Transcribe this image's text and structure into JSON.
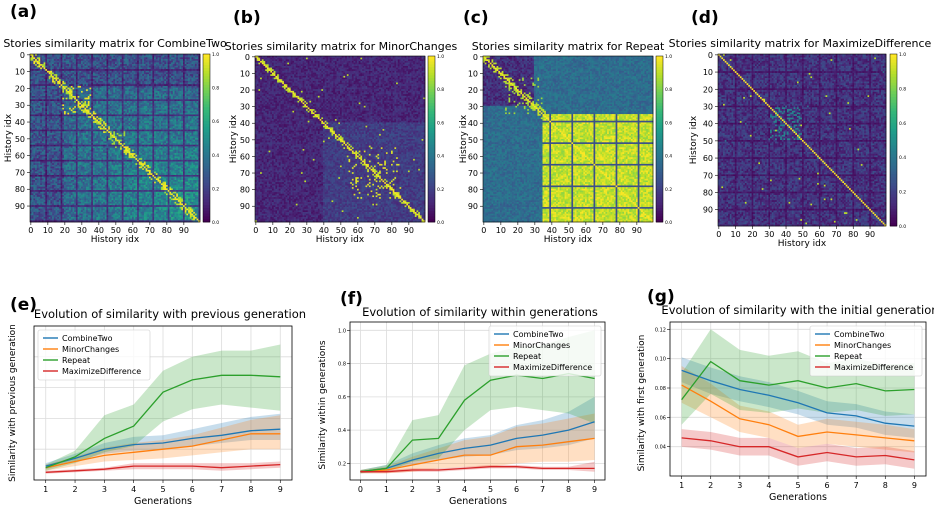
{
  "colors": {
    "CombineTwo": "#1f77b4",
    "MinorChanges": "#ff7f0e",
    "Repeat": "#2ca02c",
    "MaximizeDifference": "#d62728",
    "viridis": [
      "#440154",
      "#482878",
      "#3e4989",
      "#31688e",
      "#26828e",
      "#1f9e89",
      "#35b779",
      "#6ece58",
      "#b5de2b",
      "#fde725"
    ]
  },
  "chart_data": [
    {
      "type": "heatmap",
      "panel": "(a)",
      "title": "Stories similarity matrix for CombineTwo",
      "xlabel": "History idx",
      "ylabel": "History idx",
      "tick_labels": [
        "0",
        "10",
        "20",
        "30",
        "40",
        "50",
        "60",
        "70",
        "80",
        "90"
      ],
      "colorbar_ticks": [
        "1.0",
        "0.8",
        "0.6",
        "0.4",
        "0.2",
        "0.0"
      ],
      "size": 100,
      "pattern": "combine"
    },
    {
      "type": "heatmap",
      "panel": "(b)",
      "title": "Stories similarity matrix for MinorChanges",
      "xlabel": "History idx",
      "ylabel": "History idx",
      "tick_labels": [
        "0",
        "10",
        "20",
        "30",
        "40",
        "50",
        "60",
        "70",
        "80",
        "90"
      ],
      "colorbar_ticks": [
        "1.0",
        "0.8",
        "0.6",
        "0.4",
        "0.2",
        "0.0"
      ],
      "size": 100,
      "pattern": "minor"
    },
    {
      "type": "heatmap",
      "panel": "(c)",
      "title": "Stories similarity matrix for Repeat",
      "xlabel": "History idx",
      "ylabel": "History idx",
      "tick_labels": [
        "0",
        "10",
        "20",
        "30",
        "40",
        "50",
        "60",
        "70",
        "80",
        "90"
      ],
      "colorbar_ticks": [
        "1.0",
        "0.8",
        "0.6",
        "0.4",
        "0.2",
        "0.0"
      ],
      "size": 100,
      "pattern": "repeat"
    },
    {
      "type": "heatmap",
      "panel": "(d)",
      "title": "Stories similarity matrix for MaximizeDifference",
      "xlabel": "History idx",
      "ylabel": "History idx",
      "tick_labels": [
        "0",
        "10",
        "20",
        "30",
        "40",
        "50",
        "60",
        "70",
        "80",
        "90"
      ],
      "colorbar_ticks": [
        "1.0",
        "0.8",
        "0.6",
        "0.4",
        "0.2",
        "0.0"
      ],
      "size": 100,
      "pattern": "maxdiff"
    },
    {
      "type": "line",
      "panel": "(e)",
      "title": "Evolution of similarity with previous generation",
      "xlabel": "Generations",
      "ylabel": "Similarity with previous generation",
      "x": [
        1,
        2,
        3,
        4,
        5,
        6,
        7,
        8,
        9
      ],
      "xlim": [
        0.6,
        9.4
      ],
      "ylim": [
        0.0,
        1.0
      ],
      "yticks": [],
      "legend": "top-left",
      "series": [
        {
          "name": "CombineTwo",
          "values": [
            0.09,
            0.14,
            0.2,
            0.23,
            0.24,
            0.27,
            0.29,
            0.32,
            0.33
          ],
          "lower": [
            0.07,
            0.12,
            0.17,
            0.19,
            0.2,
            0.22,
            0.24,
            0.26,
            0.26
          ],
          "upper": [
            0.11,
            0.17,
            0.24,
            0.28,
            0.29,
            0.33,
            0.37,
            0.41,
            0.43
          ]
        },
        {
          "name": "MinorChanges",
          "values": [
            0.08,
            0.12,
            0.16,
            0.18,
            0.2,
            0.22,
            0.26,
            0.3,
            0.3
          ],
          "lower": [
            0.06,
            0.09,
            0.12,
            0.13,
            0.14,
            0.16,
            0.18,
            0.2,
            0.2
          ],
          "upper": [
            0.1,
            0.15,
            0.21,
            0.24,
            0.26,
            0.29,
            0.34,
            0.39,
            0.42
          ]
        },
        {
          "name": "Repeat",
          "values": [
            0.08,
            0.15,
            0.27,
            0.35,
            0.57,
            0.65,
            0.68,
            0.68,
            0.67
          ],
          "lower": [
            0.06,
            0.11,
            0.18,
            0.22,
            0.38,
            0.46,
            0.49,
            0.47,
            0.45
          ],
          "upper": [
            0.1,
            0.19,
            0.42,
            0.49,
            0.71,
            0.8,
            0.84,
            0.84,
            0.88
          ]
        },
        {
          "name": "MaximizeDifference",
          "values": [
            0.05,
            0.06,
            0.07,
            0.09,
            0.09,
            0.09,
            0.08,
            0.09,
            0.1
          ],
          "lower": [
            0.04,
            0.05,
            0.06,
            0.07,
            0.07,
            0.07,
            0.06,
            0.07,
            0.08
          ],
          "upper": [
            0.06,
            0.07,
            0.08,
            0.11,
            0.11,
            0.11,
            0.11,
            0.11,
            0.12
          ]
        }
      ]
    },
    {
      "type": "line",
      "panel": "(f)",
      "title": "Evolution of similarity within generations",
      "xlabel": "Generations",
      "ylabel": "Similarity within generations",
      "x": [
        0,
        1,
        2,
        3,
        4,
        5,
        6,
        7,
        8,
        9
      ],
      "xlim": [
        -0.4,
        9.4
      ],
      "ylim": [
        0.1,
        1.05
      ],
      "yticks": [
        0.2,
        0.4,
        0.6,
        0.8,
        1.0
      ],
      "ytick_labels": [
        "0.2",
        "0.4",
        "0.6",
        "0.8",
        "1.0"
      ],
      "legend": "top-right",
      "series": [
        {
          "name": "CombineTwo",
          "values": [
            0.15,
            0.17,
            0.22,
            0.26,
            0.29,
            0.31,
            0.35,
            0.37,
            0.4,
            0.45
          ],
          "lower": [
            0.14,
            0.16,
            0.19,
            0.22,
            0.24,
            0.25,
            0.28,
            0.29,
            0.31,
            0.35
          ],
          "upper": [
            0.16,
            0.19,
            0.26,
            0.31,
            0.35,
            0.37,
            0.43,
            0.46,
            0.51,
            0.6
          ]
        },
        {
          "name": "MinorChanges",
          "values": [
            0.15,
            0.16,
            0.19,
            0.22,
            0.25,
            0.25,
            0.3,
            0.31,
            0.33,
            0.35
          ],
          "lower": [
            0.14,
            0.14,
            0.15,
            0.17,
            0.18,
            0.18,
            0.2,
            0.21,
            0.21,
            0.22
          ],
          "upper": [
            0.16,
            0.18,
            0.24,
            0.29,
            0.34,
            0.36,
            0.42,
            0.44,
            0.47,
            0.5
          ]
        },
        {
          "name": "Repeat",
          "values": [
            0.15,
            0.17,
            0.34,
            0.35,
            0.58,
            0.7,
            0.73,
            0.71,
            0.74,
            0.71
          ],
          "lower": [
            0.14,
            0.15,
            0.21,
            0.23,
            0.4,
            0.52,
            0.54,
            0.52,
            0.5,
            0.44
          ],
          "upper": [
            0.16,
            0.19,
            0.46,
            0.49,
            0.79,
            0.86,
            0.9,
            0.91,
            0.96,
            1.0
          ]
        },
        {
          "name": "MaximizeDifference",
          "values": [
            0.15,
            0.15,
            0.16,
            0.16,
            0.17,
            0.18,
            0.18,
            0.17,
            0.17,
            0.17
          ],
          "lower": [
            0.14,
            0.14,
            0.15,
            0.15,
            0.16,
            0.17,
            0.17,
            0.16,
            0.16,
            0.15
          ],
          "upper": [
            0.16,
            0.16,
            0.17,
            0.17,
            0.18,
            0.19,
            0.19,
            0.18,
            0.18,
            0.21
          ]
        }
      ]
    },
    {
      "type": "line",
      "panel": "(g)",
      "title": "Evolution of similarity with the initial generation",
      "xlabel": "Generations",
      "ylabel": "Similarity with first generation",
      "x": [
        1,
        2,
        3,
        4,
        5,
        6,
        7,
        8,
        9
      ],
      "xlim": [
        0.6,
        9.4
      ],
      "ylim": [
        0.02,
        0.125
      ],
      "yticks": [
        0.04,
        0.06,
        0.08,
        0.1,
        0.12
      ],
      "ytick_labels": [
        "0.04",
        "0.06",
        "0.08",
        "0.10",
        "0.12"
      ],
      "legend": "top-right",
      "series": [
        {
          "name": "CombineTwo",
          "values": [
            0.092,
            0.085,
            0.079,
            0.075,
            0.07,
            0.063,
            0.061,
            0.056,
            0.054
          ],
          "lower": [
            0.084,
            0.076,
            0.071,
            0.067,
            0.062,
            0.055,
            0.053,
            0.048,
            0.046
          ],
          "upper": [
            0.101,
            0.094,
            0.088,
            0.084,
            0.078,
            0.071,
            0.069,
            0.064,
            0.062
          ]
        },
        {
          "name": "MinorChanges",
          "values": [
            0.082,
            0.071,
            0.059,
            0.055,
            0.047,
            0.05,
            0.048,
            0.046,
            0.044
          ],
          "lower": [
            0.07,
            0.06,
            0.05,
            0.046,
            0.039,
            0.042,
            0.04,
            0.038,
            0.036
          ],
          "upper": [
            0.095,
            0.083,
            0.068,
            0.064,
            0.055,
            0.059,
            0.057,
            0.055,
            0.052
          ]
        },
        {
          "name": "Repeat",
          "values": [
            0.072,
            0.098,
            0.085,
            0.082,
            0.085,
            0.08,
            0.083,
            0.078,
            0.079
          ],
          "lower": [
            0.055,
            0.076,
            0.065,
            0.063,
            0.066,
            0.063,
            0.065,
            0.061,
            0.062
          ],
          "upper": [
            0.09,
            0.12,
            0.106,
            0.102,
            0.105,
            0.097,
            0.1,
            0.096,
            0.097
          ]
        },
        {
          "name": "MaximizeDifference",
          "values": [
            0.046,
            0.044,
            0.04,
            0.04,
            0.033,
            0.036,
            0.033,
            0.034,
            0.031
          ],
          "lower": [
            0.04,
            0.038,
            0.034,
            0.034,
            0.027,
            0.03,
            0.027,
            0.028,
            0.025
          ],
          "upper": [
            0.052,
            0.05,
            0.046,
            0.046,
            0.039,
            0.042,
            0.039,
            0.04,
            0.037
          ]
        }
      ]
    }
  ]
}
